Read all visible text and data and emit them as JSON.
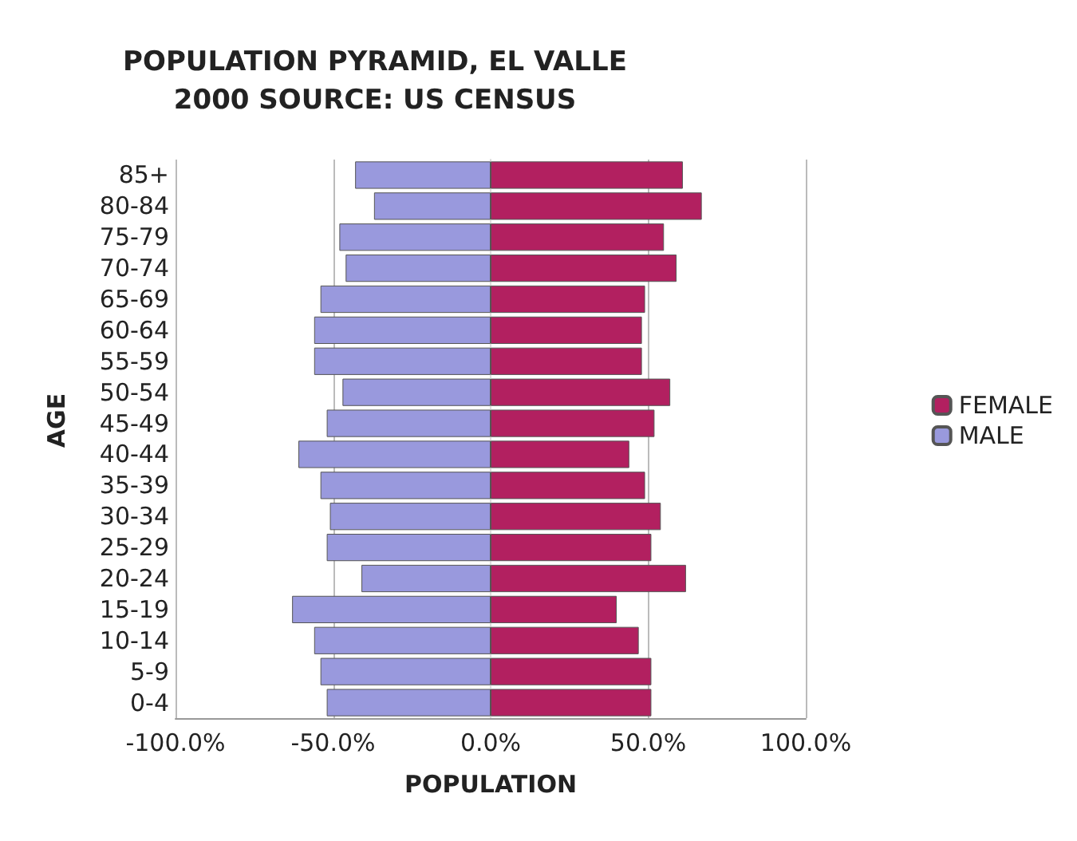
{
  "chart_data": {
    "type": "bar",
    "orientation": "horizontal",
    "title": "POPULATION PYRAMID, EL VALLE\n2000 SOURCE: US CENSUS",
    "xlabel": "POPULATION",
    "ylabel": "AGE",
    "categories": [
      "85+",
      "80-84",
      "75-79",
      "70-74",
      "65-69",
      "60-64",
      "55-59",
      "50-54",
      "45-49",
      "40-44",
      "35-39",
      "30-34",
      "25-29",
      "20-24",
      "15-19",
      "10-14",
      "5-9",
      "0-4"
    ],
    "series": [
      {
        "name": "FEMALE",
        "color": "#b22060",
        "values": [
          61,
          67,
          55,
          59,
          49,
          48,
          48,
          57,
          52,
          44,
          49,
          54,
          51,
          62,
          40,
          47,
          51,
          51
        ]
      },
      {
        "name": "MALE",
        "color": "#9999dd",
        "values": [
          -43,
          -37,
          -48,
          -46,
          -54,
          -56,
          -56,
          -47,
          -52,
          -61,
          -54,
          -51,
          -52,
          -41,
          -63,
          -56,
          -54,
          -52
        ]
      }
    ],
    "xlim": [
      -100,
      100
    ],
    "xticks": [
      {
        "value": -100,
        "label": "-100.0%"
      },
      {
        "value": -50,
        "label": "-50.0%"
      },
      {
        "value": 0,
        "label": "0.0%"
      },
      {
        "value": 50,
        "label": "50.0%"
      },
      {
        "value": 100,
        "label": "100.0%"
      }
    ],
    "stacked": true,
    "grid": "x",
    "legend": "right"
  }
}
